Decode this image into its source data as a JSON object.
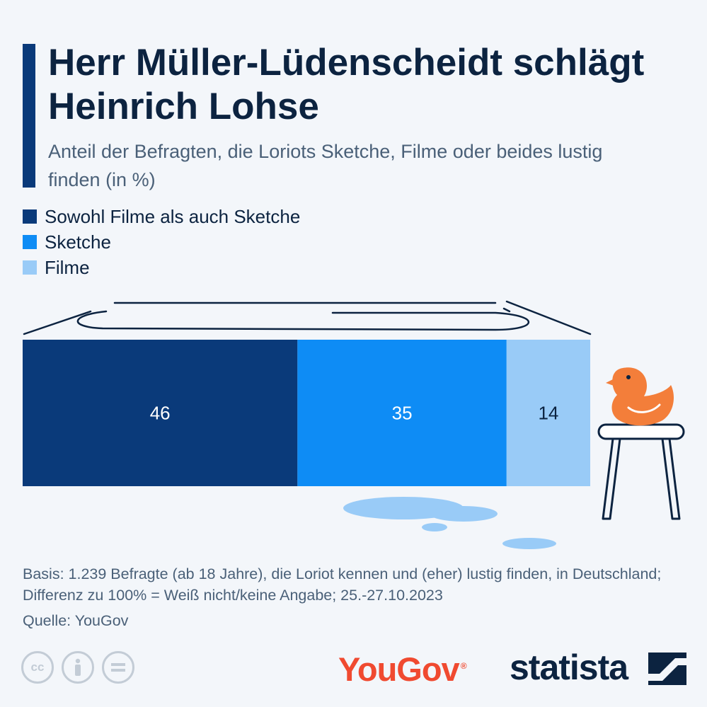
{
  "header": {
    "title": "Herr Müller-Lüdenscheidt schlägt Heinrich Lohse",
    "subtitle": "Anteil der Befragten, die Loriots Sketche, Filme oder beides lustig finden (in %)"
  },
  "chart_data": {
    "type": "bar",
    "orientation": "horizontal-stacked",
    "categories": [
      ""
    ],
    "series": [
      {
        "name": "Sowohl Filme als auch Sketche",
        "values": [
          46
        ],
        "color": "#0a3a7a"
      },
      {
        "name": "Sketche",
        "values": [
          35
        ],
        "color": "#0e8cf5"
      },
      {
        "name": "Filme",
        "values": [
          14
        ],
        "color": "#99cbf7"
      }
    ],
    "xlim": [
      0,
      95
    ],
    "legend_position": "top-left",
    "grid": false
  },
  "footer": {
    "note": "Basis: 1.239 Befragte (ab 18 Jahre), die Loriot kennen und (eher) lustig finden, in Deutschland; Differenz zu 100% = Weiß nicht/keine Angabe; 25.-27.10.2023",
    "source": "Quelle: YouGov"
  },
  "branding": {
    "partner_logo": "YouGov",
    "partner_mark": "®",
    "publisher_logo": "statista",
    "license_icons": [
      "cc-icon",
      "by-person-icon",
      "nd-equals-icon"
    ]
  },
  "decor": {
    "bathtub": "bathtub-outline",
    "duck": "rubber-duck-icon",
    "stool": "stool-icon",
    "puddle": "water-puddle"
  }
}
